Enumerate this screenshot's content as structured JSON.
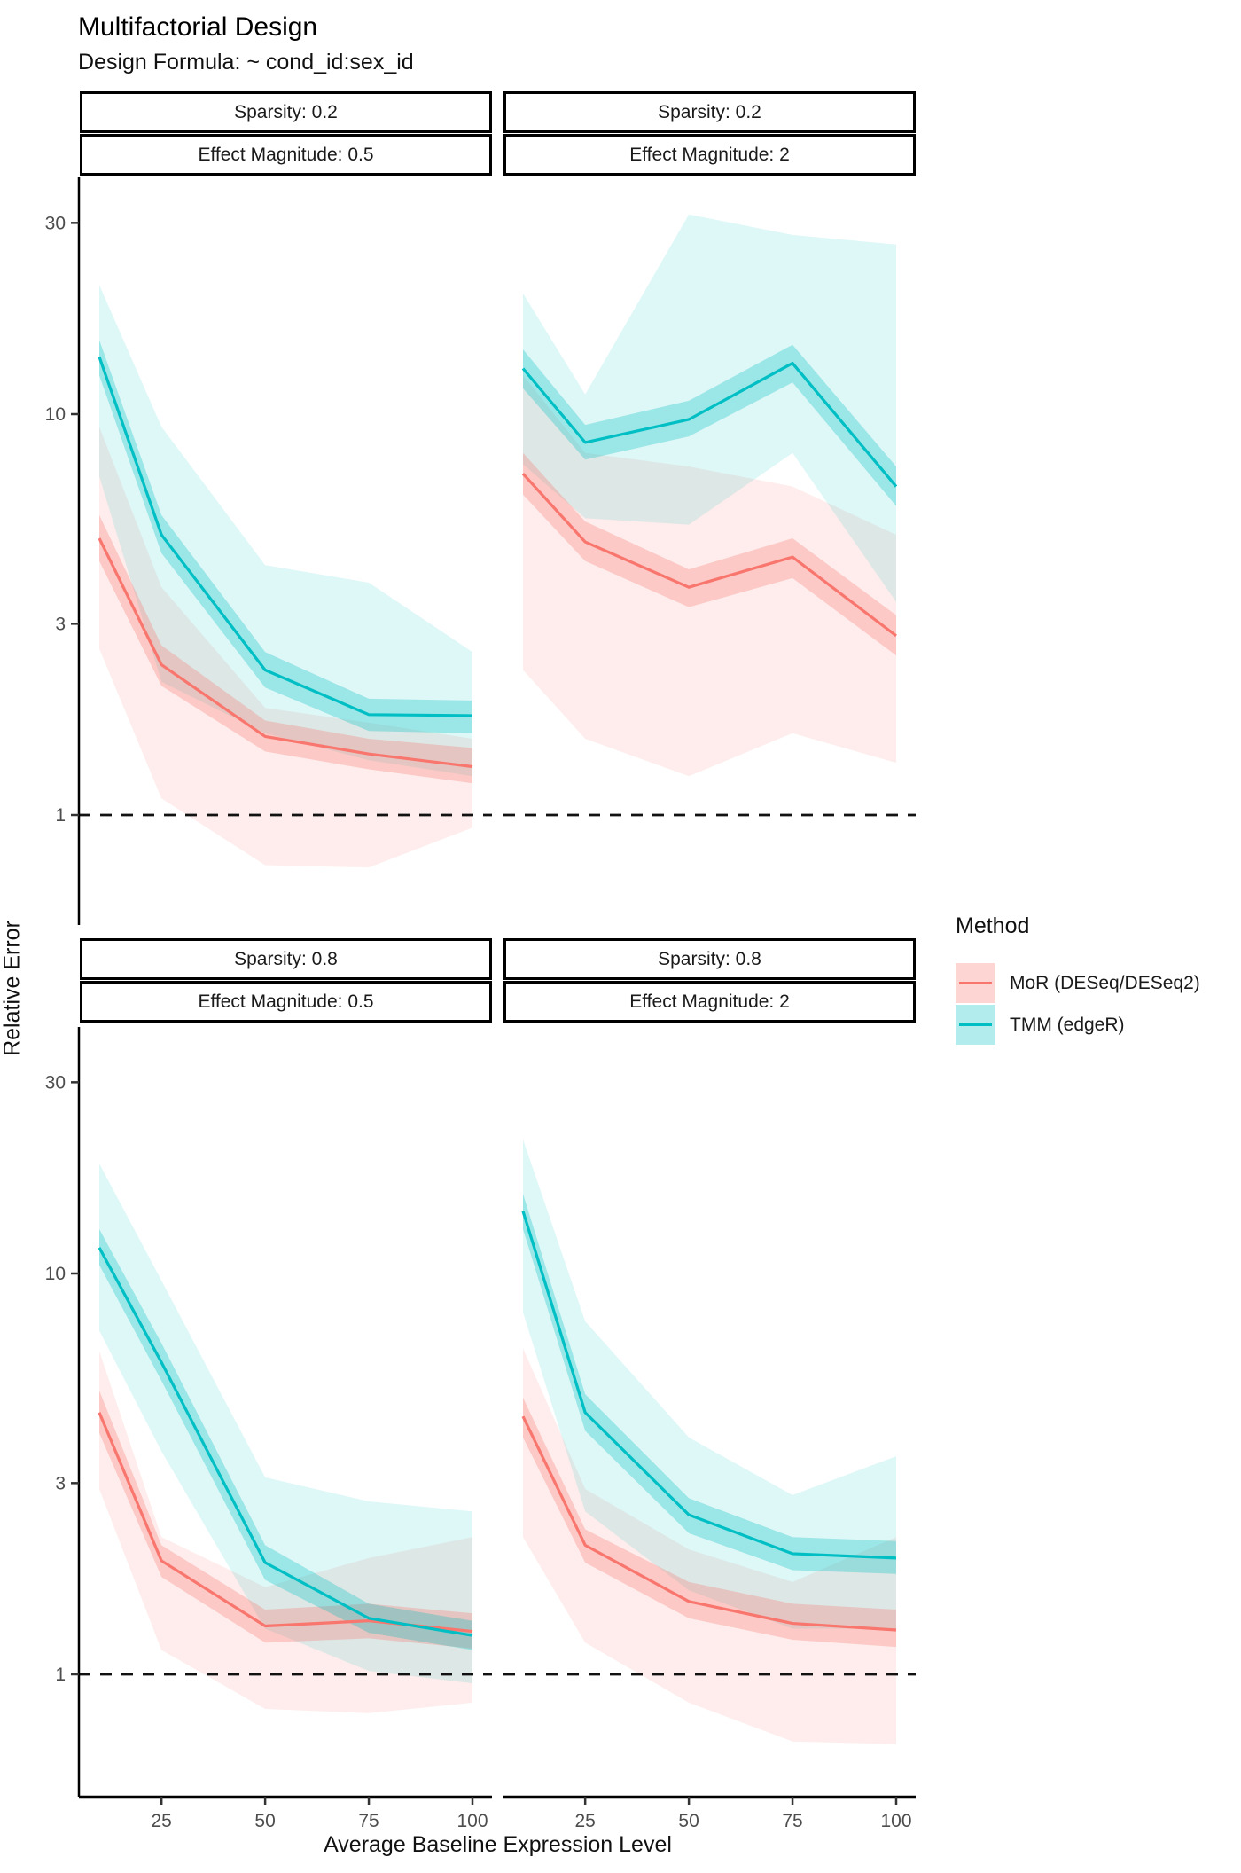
{
  "title": "Multifactorial Design",
  "subtitle": "Design Formula: ~ cond_id:sex_id",
  "legend": {
    "title": "Method",
    "entries": [
      {
        "label": "MoR (DESeq/DESeq2)",
        "color": "#F8766D"
      },
      {
        "label": "TMM (edgeR)",
        "color": "#00BFC4"
      }
    ]
  },
  "chart_data": {
    "type": "line",
    "x": [
      10,
      25,
      50,
      75,
      100
    ],
    "xlabel": "Average Baseline Expression Level",
    "ylabel": "Relative Error",
    "y_scale": "log10",
    "x_ticks": [
      25,
      50,
      75,
      100
    ],
    "y_ticks": [
      30,
      10,
      3,
      1
    ],
    "reference_line_y": 1,
    "grid": false,
    "legend_position": "right",
    "panels": [
      {
        "facet_row": "Sparsity: 0.2",
        "facet_col": "Effect Magnitude: 0.5",
        "series": [
          {
            "name": "MoR (DESeq/DESeq2)",
            "color": "#F8766D",
            "values": [
              4.9,
              2.37,
              1.57,
              1.42,
              1.32
            ],
            "band_inner": {
              "hi": [
                5.6,
                2.65,
                1.72,
                1.55,
                1.47
              ],
              "lo": [
                4.3,
                2.1,
                1.44,
                1.3,
                1.2
              ]
            },
            "band_outer": {
              "hi": [
                9.3,
                3.7,
                1.85,
                1.7,
                1.55
              ],
              "lo": [
                2.6,
                1.1,
                0.75,
                0.74,
                0.93
              ]
            }
          },
          {
            "name": "TMM (edgeR)",
            "color": "#00BFC4",
            "values": [
              13.9,
              5.0,
              2.3,
              1.78,
              1.77
            ],
            "band_inner": {
              "hi": [
                15.3,
                5.6,
                2.55,
                1.95,
                1.93
              ],
              "lo": [
                12.5,
                4.5,
                2.08,
                1.62,
                1.6
              ]
            },
            "band_outer": {
              "hi": [
                21.0,
                9.3,
                4.2,
                3.8,
                2.55
              ],
              "lo": [
                7.0,
                2.15,
                1.6,
                1.37,
                1.25
              ]
            }
          }
        ]
      },
      {
        "facet_row": "Sparsity: 0.2",
        "facet_col": "Effect Magnitude: 2",
        "series": [
          {
            "name": "MoR (DESeq/DESeq2)",
            "color": "#F8766D",
            "values": [
              7.1,
              4.8,
              3.7,
              4.4,
              2.8
            ],
            "band_inner": {
              "hi": [
                8.0,
                5.4,
                4.1,
                4.9,
                3.15
              ],
              "lo": [
                6.3,
                4.3,
                3.3,
                3.9,
                2.5
              ]
            },
            "band_outer": {
              "hi": [
                12.5,
                8.0,
                7.4,
                6.6,
                5.0
              ],
              "lo": [
                2.3,
                1.55,
                1.25,
                1.6,
                1.35
              ]
            }
          },
          {
            "name": "TMM (edgeR)",
            "color": "#00BFC4",
            "values": [
              13.0,
              8.5,
              9.7,
              13.4,
              6.6
            ],
            "band_inner": {
              "hi": [
                14.5,
                9.4,
                10.8,
                14.9,
                7.4
              ],
              "lo": [
                11.6,
                7.7,
                8.8,
                12.0,
                5.9
              ]
            },
            "band_outer": {
              "hi": [
                20.0,
                11.2,
                31.5,
                28.0,
                26.5
              ],
              "lo": [
                7.5,
                5.5,
                5.3,
                8.0,
                3.4
              ]
            }
          }
        ]
      },
      {
        "facet_row": "Sparsity: 0.8",
        "facet_col": "Effect Magnitude: 0.5",
        "series": [
          {
            "name": "MoR (DESeq/DESeq2)",
            "color": "#F8766D",
            "values": [
              4.5,
              1.92,
              1.32,
              1.36,
              1.28
            ],
            "band_inner": {
              "hi": [
                5.1,
                2.1,
                1.45,
                1.5,
                1.42
              ],
              "lo": [
                4.0,
                1.75,
                1.2,
                1.23,
                1.16
              ]
            },
            "band_outer": {
              "hi": [
                6.4,
                2.2,
                1.65,
                1.95,
                2.2
              ],
              "lo": [
                2.9,
                1.15,
                0.82,
                0.8,
                0.85
              ]
            }
          },
          {
            "name": "TMM (edgeR)",
            "color": "#00BFC4",
            "values": [
              11.6,
              6.0,
              1.9,
              1.38,
              1.25
            ],
            "band_inner": {
              "hi": [
                12.9,
                6.7,
                2.1,
                1.5,
                1.36
              ],
              "lo": [
                10.5,
                5.4,
                1.72,
                1.27,
                1.15
              ]
            },
            "band_outer": {
              "hi": [
                18.8,
                9.6,
                3.1,
                2.7,
                2.55
              ],
              "lo": [
                7.2,
                3.6,
                1.3,
                1.02,
                0.95
              ]
            }
          }
        ]
      },
      {
        "facet_row": "Sparsity: 0.8",
        "facet_col": "Effect Magnitude: 2",
        "series": [
          {
            "name": "MoR (DESeq/DESeq2)",
            "color": "#F8766D",
            "values": [
              4.4,
              2.1,
              1.52,
              1.34,
              1.29
            ],
            "band_inner": {
              "hi": [
                4.9,
                2.3,
                1.7,
                1.5,
                1.45
              ],
              "lo": [
                3.9,
                1.9,
                1.38,
                1.22,
                1.17
              ]
            },
            "band_outer": {
              "hi": [
                6.5,
                2.9,
                2.05,
                1.7,
                2.2
              ],
              "lo": [
                2.2,
                1.2,
                0.85,
                0.68,
                0.67
              ]
            }
          },
          {
            "name": "TMM (edgeR)",
            "color": "#00BFC4",
            "values": [
              14.3,
              4.5,
              2.5,
              2.0,
              1.95
            ],
            "band_inner": {
              "hi": [
                15.8,
                5.0,
                2.75,
                2.2,
                2.15
              ],
              "lo": [
                12.9,
                4.05,
                2.25,
                1.82,
                1.78
              ]
            },
            "band_outer": {
              "hi": [
                21.6,
                7.6,
                3.9,
                2.8,
                3.5
              ],
              "lo": [
                8.0,
                2.55,
                1.62,
                1.3,
                1.3
              ]
            }
          }
        ]
      }
    ]
  }
}
